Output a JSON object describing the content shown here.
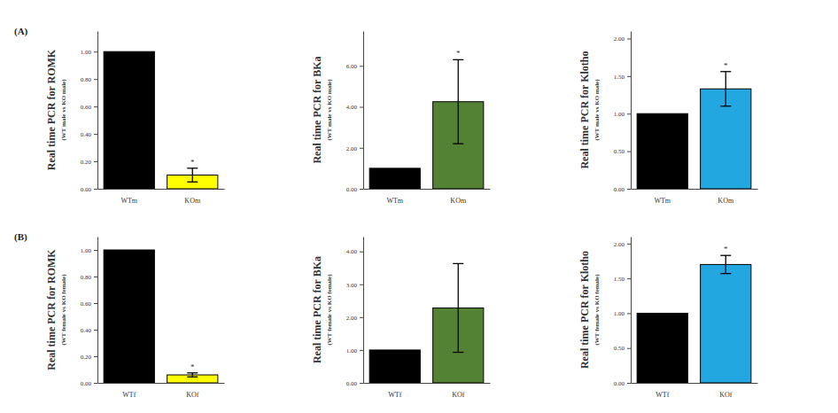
{
  "chart_data": [
    {
      "type": "bar",
      "title": "(A)",
      "ylabel": "Real time PCR for ROMK",
      "ylabel_sub": "(WT male vs KO male)",
      "categories": [
        "WTm",
        "KOm"
      ],
      "values": [
        1.0,
        0.1
      ],
      "errors": [
        null,
        0.05
      ],
      "significance": [
        null,
        "*"
      ],
      "colors": [
        "#000000",
        "#ffff00"
      ],
      "ylim": [
        0,
        1.15
      ],
      "yticks": [
        {
          "value": 0,
          "label": "0.00"
        },
        {
          "value": 0.2,
          "label": "0.20"
        },
        {
          "value": 0.4,
          "label": "0.40"
        },
        {
          "value": 0.6,
          "label": "0.60"
        },
        {
          "value": 0.8,
          "label": "0.80"
        },
        {
          "value": 1.0,
          "label": "1.00"
        }
      ]
    },
    {
      "type": "bar",
      "ylabel": "Real time PCR for BKa",
      "ylabel_sub": "(WT male vs KO male)",
      "categories": [
        "WTm",
        "KOm"
      ],
      "values": [
        1.0,
        4.25
      ],
      "errors": [
        null,
        2.05
      ],
      "significance": [
        null,
        "*"
      ],
      "colors": [
        "#000000",
        "#548235"
      ],
      "ylim": [
        0,
        7.7
      ],
      "yticks": [
        {
          "value": 0,
          "label": "0.00"
        },
        {
          "value": 2,
          "label": "2.00"
        },
        {
          "value": 4,
          "label": "4.00"
        },
        {
          "value": 6,
          "label": "6.00"
        }
      ]
    },
    {
      "type": "bar",
      "ylabel": "Real time PCR for Klotho",
      "ylabel_sub": "(WT male vs KO male)",
      "categories": [
        "WTm",
        "KOm"
      ],
      "values": [
        1.0,
        1.33
      ],
      "errors": [
        null,
        0.23
      ],
      "significance": [
        null,
        "*"
      ],
      "colors": [
        "#000000",
        "#22a7e0"
      ],
      "ylim": [
        0,
        2.1
      ],
      "yticks": [
        {
          "value": 0,
          "label": "0.00"
        },
        {
          "value": 0.5,
          "label": "0.50"
        },
        {
          "value": 1.0,
          "label": "1.00"
        },
        {
          "value": 1.5,
          "label": "1.50"
        },
        {
          "value": 2.0,
          "label": "2.00"
        }
      ]
    },
    {
      "type": "bar",
      "title": "(B)",
      "ylabel": "Real time PCR for ROMK",
      "ylabel_sub": "(WT female vs KO female)",
      "categories": [
        "WTf",
        "KOf"
      ],
      "values": [
        1.0,
        0.06
      ],
      "errors": [
        null,
        0.015
      ],
      "significance": [
        null,
        "*"
      ],
      "colors": [
        "#000000",
        "#ffff00"
      ],
      "ylim": [
        0,
        1.1
      ],
      "yticks": [
        {
          "value": 0,
          "label": "0.00"
        },
        {
          "value": 0.2,
          "label": "0.20"
        },
        {
          "value": 0.4,
          "label": "0.40"
        },
        {
          "value": 0.6,
          "label": "0.60"
        },
        {
          "value": 0.8,
          "label": "0.80"
        },
        {
          "value": 1.0,
          "label": "1.00"
        }
      ]
    },
    {
      "type": "bar",
      "ylabel": "Real time PCR for BKa",
      "ylabel_sub": "(WT female vs KO female)",
      "categories": [
        "WTf",
        "KOf"
      ],
      "values": [
        1.0,
        2.28
      ],
      "errors": [
        null,
        1.35
      ],
      "significance": [
        null,
        null
      ],
      "colors": [
        "#000000",
        "#548235"
      ],
      "ylim": [
        0,
        4.45
      ],
      "yticks": [
        {
          "value": 0,
          "label": "0.00"
        },
        {
          "value": 1,
          "label": "1.00"
        },
        {
          "value": 2,
          "label": "2.00"
        },
        {
          "value": 3,
          "label": "3.00"
        },
        {
          "value": 4,
          "label": "4.00"
        }
      ]
    },
    {
      "type": "bar",
      "ylabel": "Real time PCR for Klotho",
      "ylabel_sub": "(WT female vs KO female)",
      "categories": [
        "WTf",
        "KOf"
      ],
      "values": [
        1.0,
        1.7
      ],
      "errors": [
        null,
        0.13
      ],
      "significance": [
        null,
        "*"
      ],
      "colors": [
        "#000000",
        "#22a7e0"
      ],
      "ylim": [
        0,
        2.1
      ],
      "yticks": [
        {
          "value": 0,
          "label": "0.00"
        },
        {
          "value": 0.5,
          "label": "0.50"
        },
        {
          "value": 1.0,
          "label": "1.00"
        },
        {
          "value": 1.5,
          "label": "1.50"
        },
        {
          "value": 2.0,
          "label": "2.00"
        }
      ]
    }
  ]
}
